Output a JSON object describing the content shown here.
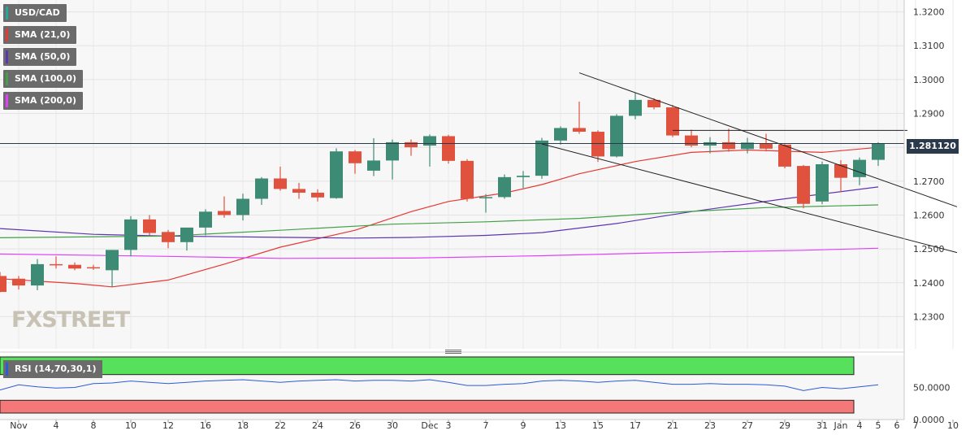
{
  "legend": [
    {
      "label": "USD/CAD",
      "color": "#26a69a"
    },
    {
      "label": "SMA (21,0)",
      "color": "#e53935"
    },
    {
      "label": "SMA (50,0)",
      "color": "#5e35b1"
    },
    {
      "label": "SMA (100,0)",
      "color": "#43a047"
    },
    {
      "label": "SMA (200,0)",
      "color": "#e040fb"
    }
  ],
  "rsi_label": "RSI (14,70,30,1)",
  "last_price_label": "1.281120",
  "watermark": {
    "part1": "FX",
    "part2": "STREET"
  },
  "colors": {
    "up": "#3d8b74",
    "down": "#e0523d",
    "sma21": "#e53935",
    "sma50": "#5e35b1",
    "sma100": "#43a047",
    "sma200": "#e040fb",
    "trendline": "#222222",
    "rsi_line": "#2c5bd6",
    "rsi_overbought_zone": "#57e05b",
    "rsi_oversold_zone": "#f47878"
  },
  "chart_data": [
    {
      "type": "candlestick",
      "title": "USD/CAD",
      "ylim": [
        1.2205,
        1.3235
      ],
      "y_ticks": [
        "1.2300",
        "1.2400",
        "1.2500",
        "1.2600",
        "1.2700",
        "1.2800",
        "1.2900",
        "1.3000",
        "1.3100",
        "1.3200"
      ],
      "x_labels": [
        "Nov",
        "4",
        "8",
        "10",
        "12",
        "16",
        "18",
        "22",
        "24",
        "26",
        "30",
        "Dec",
        "3",
        "7",
        "9",
        "13",
        "15",
        "17",
        "21",
        "23",
        "27",
        "29",
        "31",
        "Jan",
        "4",
        "5",
        "6",
        "7",
        "10"
      ],
      "candles": [
        {
          "date": "Nov 1",
          "o": 1.242,
          "h": 1.2432,
          "l": 1.2372,
          "c": 1.2373
        },
        {
          "date": "Nov 2",
          "o": 1.2412,
          "h": 1.242,
          "l": 1.238,
          "c": 1.2392
        },
        {
          "date": "Nov 3",
          "o": 1.2392,
          "h": 1.247,
          "l": 1.2378,
          "c": 1.2455
        },
        {
          "date": "Nov 4",
          "o": 1.2455,
          "h": 1.2478,
          "l": 1.2442,
          "c": 1.2452
        },
        {
          "date": "Nov 5",
          "o": 1.2453,
          "h": 1.246,
          "l": 1.2437,
          "c": 1.2442
        },
        {
          "date": "Nov 8",
          "o": 1.2446,
          "h": 1.2453,
          "l": 1.2438,
          "c": 1.2445
        },
        {
          "date": "Nov 9",
          "o": 1.2437,
          "h": 1.2497,
          "l": 1.2387,
          "c": 1.2497
        },
        {
          "date": "Nov 10",
          "o": 1.2497,
          "h": 1.2597,
          "l": 1.2478,
          "c": 1.2587
        },
        {
          "date": "Nov 11",
          "o": 1.2587,
          "h": 1.26,
          "l": 1.254,
          "c": 1.2547
        },
        {
          "date": "Nov 12",
          "o": 1.255,
          "h": 1.2556,
          "l": 1.2502,
          "c": 1.252
        },
        {
          "date": "Nov 15",
          "o": 1.252,
          "h": 1.2562,
          "l": 1.2495,
          "c": 1.2563
        },
        {
          "date": "Nov 16",
          "o": 1.2563,
          "h": 1.2617,
          "l": 1.254,
          "c": 1.261
        },
        {
          "date": "Nov 17",
          "o": 1.2612,
          "h": 1.2655,
          "l": 1.2592,
          "c": 1.26
        },
        {
          "date": "Nov 18",
          "o": 1.26,
          "h": 1.2663,
          "l": 1.2584,
          "c": 1.2648
        },
        {
          "date": "Nov 19",
          "o": 1.2648,
          "h": 1.2712,
          "l": 1.263,
          "c": 1.2708
        },
        {
          "date": "Nov 22",
          "o": 1.2708,
          "h": 1.2743,
          "l": 1.2672,
          "c": 1.2677
        },
        {
          "date": "Nov 23",
          "o": 1.2677,
          "h": 1.2695,
          "l": 1.2648,
          "c": 1.2666
        },
        {
          "date": "Nov 24",
          "o": 1.2666,
          "h": 1.2676,
          "l": 1.264,
          "c": 1.2652
        },
        {
          "date": "Nov 25",
          "o": 1.265,
          "h": 1.2797,
          "l": 1.2648,
          "c": 1.2788
        },
        {
          "date": "Nov 26",
          "o": 1.2788,
          "h": 1.2792,
          "l": 1.2722,
          "c": 1.2753
        },
        {
          "date": "Nov 29",
          "o": 1.2731,
          "h": 1.2827,
          "l": 1.2715,
          "c": 1.2761
        },
        {
          "date": "Nov 30",
          "o": 1.2761,
          "h": 1.2823,
          "l": 1.2705,
          "c": 1.2815
        },
        {
          "date": "Dec 1",
          "o": 1.2815,
          "h": 1.2823,
          "l": 1.2775,
          "c": 1.28
        },
        {
          "date": "Dec 2",
          "o": 1.2805,
          "h": 1.2838,
          "l": 1.2743,
          "c": 1.2833
        },
        {
          "date": "Dec 3",
          "o": 1.2833,
          "h": 1.2837,
          "l": 1.2752,
          "c": 1.276
        },
        {
          "date": "Dec 6",
          "o": 1.276,
          "h": 1.2765,
          "l": 1.264,
          "c": 1.2648
        },
        {
          "date": "Dec 7",
          "o": 1.2652,
          "h": 1.2662,
          "l": 1.2607,
          "c": 1.2653
        },
        {
          "date": "Dec 8",
          "o": 1.2653,
          "h": 1.272,
          "l": 1.2648,
          "c": 1.2712
        },
        {
          "date": "Dec 9",
          "o": 1.2712,
          "h": 1.273,
          "l": 1.268,
          "c": 1.2716
        },
        {
          "date": "Dec 10",
          "o": 1.2716,
          "h": 1.2828,
          "l": 1.2707,
          "c": 1.282
        },
        {
          "date": "Dec 13",
          "o": 1.282,
          "h": 1.2862,
          "l": 1.2808,
          "c": 1.2857
        },
        {
          "date": "Dec 14",
          "o": 1.2857,
          "h": 1.2935,
          "l": 1.284,
          "c": 1.2846
        },
        {
          "date": "Dec 15",
          "o": 1.2846,
          "h": 1.285,
          "l": 1.2757,
          "c": 1.2773
        },
        {
          "date": "Dec 16",
          "o": 1.2773,
          "h": 1.2898,
          "l": 1.277,
          "c": 1.2893
        },
        {
          "date": "Dec 17",
          "o": 1.2893,
          "h": 1.296,
          "l": 1.2883,
          "c": 1.294
        },
        {
          "date": "Dec 20",
          "o": 1.294,
          "h": 1.2945,
          "l": 1.2912,
          "c": 1.2918
        },
        {
          "date": "Dec 21",
          "o": 1.2918,
          "h": 1.2925,
          "l": 1.283,
          "c": 1.2835
        },
        {
          "date": "Dec 22",
          "o": 1.2835,
          "h": 1.2852,
          "l": 1.28,
          "c": 1.2805
        },
        {
          "date": "Dec 23",
          "o": 1.2805,
          "h": 1.283,
          "l": 1.2782,
          "c": 1.2815
        },
        {
          "date": "Dec 24",
          "o": 1.2815,
          "h": 1.2855,
          "l": 1.2787,
          "c": 1.2795
        },
        {
          "date": "Dec 27",
          "o": 1.2795,
          "h": 1.2828,
          "l": 1.2782,
          "c": 1.2814
        },
        {
          "date": "Dec 28",
          "o": 1.2812,
          "h": 1.284,
          "l": 1.2788,
          "c": 1.2796
        },
        {
          "date": "Dec 29",
          "o": 1.2808,
          "h": 1.2812,
          "l": 1.2738,
          "c": 1.2743
        },
        {
          "date": "Dec 30",
          "o": 1.2745,
          "h": 1.2748,
          "l": 1.262,
          "c": 1.2633
        },
        {
          "date": "Dec 31",
          "o": 1.264,
          "h": 1.2758,
          "l": 1.2632,
          "c": 1.275
        },
        {
          "date": "Jan 3",
          "o": 1.275,
          "h": 1.2762,
          "l": 1.2668,
          "c": 1.271
        },
        {
          "date": "Jan 4",
          "o": 1.2712,
          "h": 1.277,
          "l": 1.2688,
          "c": 1.2763
        },
        {
          "date": "Jan 5",
          "o": 1.2763,
          "h": 1.2815,
          "l": 1.2745,
          "c": 1.2811
        }
      ],
      "sma": [
        {
          "name": "SMA (21,0)",
          "points": [
            [
              "Nov 1",
              1.2412
            ],
            [
              "Nov 5",
              1.2398
            ],
            [
              "Nov 9",
              1.2388
            ],
            [
              "Nov 12",
              1.2408
            ],
            [
              "Nov 17",
              1.2455
            ],
            [
              "Nov 22",
              1.2505
            ],
            [
              "Nov 26",
              1.2555
            ],
            [
              "Dec 1",
              1.261
            ],
            [
              "Dec 3",
              1.264
            ],
            [
              "Dec 8",
              1.2665
            ],
            [
              "Dec 10",
              1.269
            ],
            [
              "Dec 14",
              1.2722
            ],
            [
              "Dec 17",
              1.2758
            ],
            [
              "Dec 22",
              1.2785
            ],
            [
              "Dec 27",
              1.2792
            ],
            [
              "Dec 31",
              1.2785
            ],
            [
              "Jan 5",
              1.28
            ]
          ]
        },
        {
          "name": "SMA (50,0)",
          "points": [
            [
              "Nov 1",
              1.256
            ],
            [
              "Nov 8",
              1.2543
            ],
            [
              "Nov 12",
              1.2538
            ],
            [
              "Nov 19",
              1.2535
            ],
            [
              "Nov 26",
              1.2532
            ],
            [
              "Dec 1",
              1.2534
            ],
            [
              "Dec 7",
              1.254
            ],
            [
              "Dec 10",
              1.2548
            ],
            [
              "Dec 16",
              1.2575
            ],
            [
              "Dec 22",
              1.261
            ],
            [
              "Dec 29",
              1.2648
            ],
            [
              "Jan 5",
              1.2683
            ]
          ]
        },
        {
          "name": "SMA (100,0)",
          "points": [
            [
              "Nov 1",
              1.2533
            ],
            [
              "Nov 12",
              1.2538
            ],
            [
              "Nov 22",
              1.2555
            ],
            [
              "Nov 30",
              1.2573
            ],
            [
              "Dec 7",
              1.258
            ],
            [
              "Dec 14",
              1.259
            ],
            [
              "Dec 21",
              1.2608
            ],
            [
              "Dec 28",
              1.2622
            ],
            [
              "Jan 5",
              1.263
            ]
          ]
        },
        {
          "name": "SMA (200,0)",
          "points": [
            [
              "Nov 1",
              1.2485
            ],
            [
              "Nov 12",
              1.2478
            ],
            [
              "Nov 22",
              1.2472
            ],
            [
              "Dec 1",
              1.2473
            ],
            [
              "Dec 10",
              1.248
            ],
            [
              "Dec 20",
              1.2488
            ],
            [
              "Dec 30",
              1.2496
            ],
            [
              "Jan 5",
              1.2502
            ]
          ]
        }
      ],
      "trendlines": [
        {
          "from": [
            "Dec 14",
            1.302
          ],
          "to": [
            "Jan 10",
            1.267
          ]
        },
        {
          "from": [
            "Dec 10",
            1.281
          ],
          "to": [
            "Jan 10",
            1.253
          ]
        },
        {
          "from": [
            "Dec 21",
            1.285
          ],
          "to": [
            "Jan 10",
            1.285
          ]
        }
      ],
      "last_price": 1.28112
    },
    {
      "type": "line",
      "title": "RSI (14,70,30,1)",
      "ylim": [
        0,
        100
      ],
      "y_ticks": [
        "50.0000",
        "0.0000"
      ],
      "overbought": 70,
      "oversold": 30,
      "series": [
        {
          "name": "RSI (14,70,30,1)",
          "values": [
            46,
            54,
            51,
            49,
            50,
            56,
            57,
            60,
            58,
            56,
            58,
            60,
            61,
            62,
            60,
            58,
            60,
            61,
            62,
            60,
            61,
            61,
            60,
            62,
            58,
            53,
            53,
            55,
            56,
            60,
            61,
            60,
            58,
            60,
            61,
            58,
            55,
            55,
            56,
            55,
            55,
            54,
            52,
            45,
            50,
            48,
            51,
            54
          ]
        }
      ]
    }
  ]
}
